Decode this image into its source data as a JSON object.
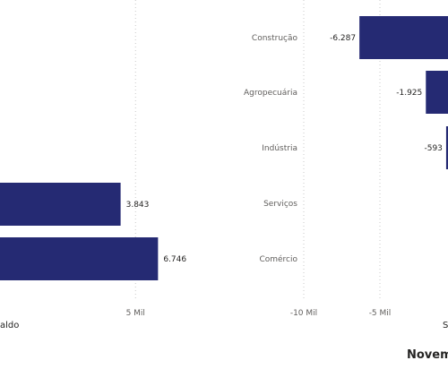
{
  "colors": {
    "bar": "#252a73",
    "grid": "#c8c8c8",
    "text": "#605e5c"
  },
  "chart_data": [
    {
      "type": "bar",
      "orientation": "horizontal",
      "title": "",
      "xlabel": "Saldo",
      "xlabel_visible": "aldo",
      "ylabel": "",
      "categories": [
        "Serviços",
        "Comércio"
      ],
      "series": [
        {
          "values": [
            3843,
            6746
          ]
        }
      ],
      "data_labels": [
        "3.843",
        "6.746"
      ],
      "x_ticks": [
        {
          "value": 5000,
          "label": "5 Mil"
        }
      ],
      "xlim": [
        -5520,
        7000
      ],
      "grid": true,
      "legend": "none"
    },
    {
      "type": "bar",
      "orientation": "horizontal",
      "title": "",
      "xlabel": "S",
      "ylabel": "",
      "categories": [
        "Construção",
        "Agropecuária",
        "Indústria",
        "Serviços",
        "Comércio"
      ],
      "series": [
        {
          "values": [
            -6287,
            -1925,
            -593,
            null,
            null
          ]
        }
      ],
      "data_labels": [
        "-6.287",
        "-1.925",
        "-593",
        "",
        ""
      ],
      "x_ticks": [
        {
          "value": -10000,
          "label": "-10 Mil"
        },
        {
          "value": -5000,
          "label": "-5 Mil"
        },
        {
          "value": 0,
          "label": ""
        }
      ],
      "xlim": [
        -10000,
        0
      ],
      "grid": true,
      "legend": "none"
    }
  ],
  "footer": {
    "title": "Novem"
  }
}
